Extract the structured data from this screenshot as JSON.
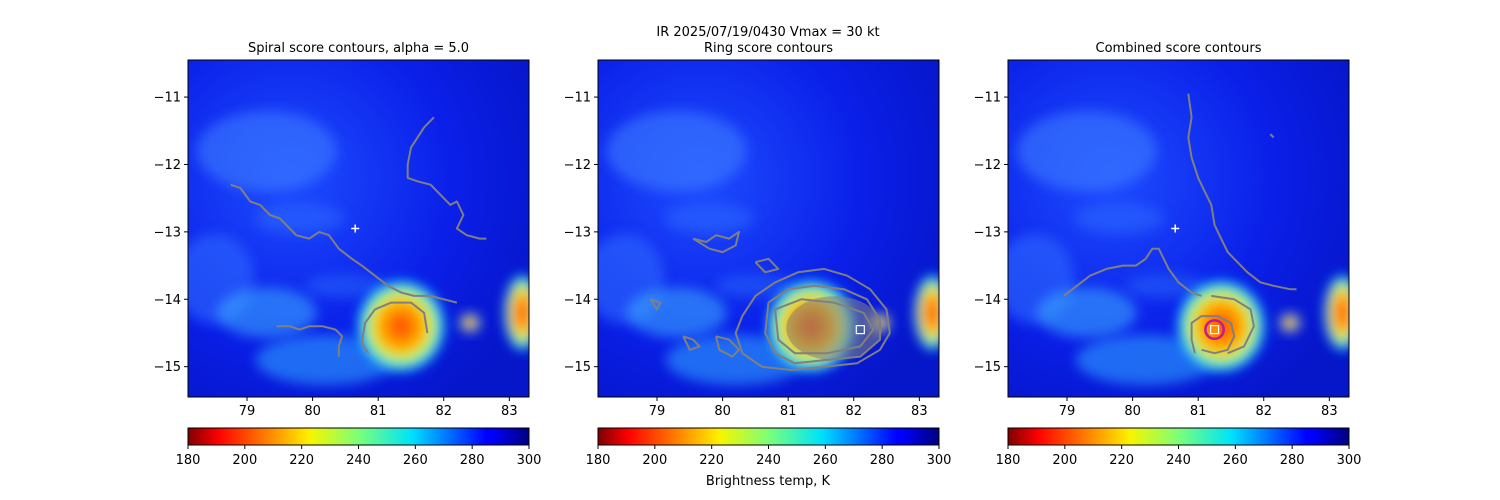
{
  "figure": {
    "suptitle_line1": "IR  2025/07/19/0430    Vmax = 30 kt",
    "colorbar_label": "Brightness temp, K"
  },
  "colors": {
    "contour": "#808080",
    "center_cross": "#ffffff",
    "best_marker_edge": "#ffffff",
    "circle": "#c0199a",
    "combined_marker": "#ff8c00",
    "colormap": "jet_r"
  },
  "chart_data": [
    {
      "type": "heatmap",
      "title": "Spiral score contours, alpha =  5.0",
      "xlim": [
        78.1,
        83.3
      ],
      "ylim": [
        -15.45,
        -10.45
      ],
      "xticks": [
        79,
        80,
        81,
        82,
        83
      ],
      "yticks": [
        -11,
        -12,
        -13,
        -14,
        -15
      ],
      "colorbar": {
        "min": 180,
        "max": 300,
        "ticks": [
          180,
          200,
          220,
          240,
          260,
          280,
          300
        ],
        "cmap": "jet_r"
      },
      "center_marker": {
        "x": 80.65,
        "y": -12.95,
        "symbol": "+"
      },
      "contours": [
        [
          [
            78.75,
            -12.3
          ],
          [
            78.9,
            -12.35
          ],
          [
            79.05,
            -12.55
          ],
          [
            79.2,
            -12.6
          ],
          [
            79.35,
            -12.75
          ],
          [
            79.5,
            -12.8
          ],
          [
            79.6,
            -12.9
          ],
          [
            79.75,
            -13.05
          ],
          [
            79.95,
            -13.1
          ],
          [
            80.1,
            -13.0
          ],
          [
            80.25,
            -13.05
          ],
          [
            80.4,
            -13.25
          ],
          [
            80.6,
            -13.4
          ],
          [
            80.75,
            -13.5
          ],
          [
            80.95,
            -13.65
          ],
          [
            81.15,
            -13.8
          ],
          [
            81.35,
            -13.9
          ],
          [
            81.55,
            -13.95
          ],
          [
            81.8,
            -13.95
          ],
          [
            82.0,
            -14.0
          ],
          [
            82.2,
            -14.05
          ]
        ],
        [
          [
            80.85,
            -14.8
          ],
          [
            80.75,
            -14.65
          ],
          [
            80.8,
            -14.35
          ],
          [
            80.95,
            -14.15
          ],
          [
            81.2,
            -14.05
          ],
          [
            81.5,
            -14.05
          ],
          [
            81.7,
            -14.2
          ],
          [
            81.75,
            -14.5
          ]
        ],
        [
          [
            79.45,
            -14.4
          ],
          [
            79.65,
            -14.4
          ],
          [
            79.8,
            -14.45
          ],
          [
            79.95,
            -14.4
          ],
          [
            80.15,
            -14.4
          ],
          [
            80.35,
            -14.45
          ],
          [
            80.45,
            -14.55
          ],
          [
            80.4,
            -14.7
          ],
          [
            80.4,
            -14.85
          ]
        ],
        [
          [
            81.85,
            -11.3
          ],
          [
            81.7,
            -11.45
          ],
          [
            81.5,
            -11.75
          ],
          [
            81.45,
            -12.0
          ],
          [
            81.45,
            -12.2
          ],
          [
            81.6,
            -12.25
          ],
          [
            81.8,
            -12.3
          ],
          [
            81.95,
            -12.45
          ],
          [
            82.1,
            -12.6
          ],
          [
            82.2,
            -12.55
          ],
          [
            82.3,
            -12.75
          ],
          [
            82.2,
            -12.95
          ],
          [
            82.35,
            -13.05
          ],
          [
            82.55,
            -13.1
          ],
          [
            82.65,
            -13.1
          ]
        ]
      ]
    },
    {
      "type": "heatmap",
      "title": "Ring score contours",
      "xlim": [
        78.1,
        83.3
      ],
      "ylim": [
        -15.45,
        -10.45
      ],
      "xticks": [
        79,
        80,
        81,
        82,
        83
      ],
      "yticks": [
        -11,
        -12,
        -13,
        -14,
        -15
      ],
      "colorbar": {
        "min": 180,
        "max": 300,
        "ticks": [
          180,
          200,
          220,
          240,
          260,
          280,
          300
        ],
        "cmap": "jet_r"
      },
      "best_marker": {
        "x": 82.1,
        "y": -14.45,
        "symbol": "square"
      },
      "contour_blob_center": {
        "x": 81.55,
        "y": -14.4
      },
      "contours": [
        [
          [
            80.3,
            -14.25
          ],
          [
            80.5,
            -13.95
          ],
          [
            80.8,
            -13.75
          ],
          [
            81.15,
            -13.6
          ],
          [
            81.55,
            -13.55
          ],
          [
            81.9,
            -13.65
          ],
          [
            82.25,
            -13.85
          ],
          [
            82.5,
            -14.15
          ],
          [
            82.55,
            -14.5
          ],
          [
            82.4,
            -14.75
          ],
          [
            82.05,
            -14.95
          ],
          [
            81.55,
            -15.0
          ],
          [
            81.05,
            -15.05
          ],
          [
            80.6,
            -15.0
          ],
          [
            80.3,
            -14.8
          ],
          [
            80.2,
            -14.5
          ],
          [
            80.3,
            -14.25
          ]
        ],
        [
          [
            80.7,
            -14.05
          ],
          [
            81.0,
            -13.85
          ],
          [
            81.4,
            -13.8
          ],
          [
            81.85,
            -13.85
          ],
          [
            82.2,
            -14.0
          ],
          [
            82.4,
            -14.3
          ],
          [
            82.4,
            -14.6
          ],
          [
            82.1,
            -14.85
          ],
          [
            81.6,
            -14.9
          ],
          [
            81.1,
            -14.95
          ],
          [
            80.8,
            -14.8
          ],
          [
            80.65,
            -14.5
          ],
          [
            80.7,
            -14.05
          ]
        ],
        [
          [
            80.8,
            -14.15
          ],
          [
            81.2,
            -14.0
          ],
          [
            81.7,
            -14.05
          ],
          [
            82.15,
            -14.2
          ],
          [
            82.3,
            -14.45
          ],
          [
            82.1,
            -14.7
          ],
          [
            81.6,
            -14.8
          ],
          [
            81.1,
            -14.8
          ],
          [
            80.85,
            -14.6
          ],
          [
            80.8,
            -14.15
          ]
        ],
        [
          [
            79.55,
            -13.1
          ],
          [
            79.75,
            -13.15
          ],
          [
            79.9,
            -13.05
          ],
          [
            80.1,
            -13.1
          ],
          [
            80.25,
            -13.0
          ],
          [
            80.2,
            -13.2
          ],
          [
            80.0,
            -13.3
          ],
          [
            79.8,
            -13.25
          ],
          [
            79.55,
            -13.1
          ]
        ],
        [
          [
            79.9,
            -14.55
          ],
          [
            80.1,
            -14.6
          ],
          [
            80.25,
            -14.75
          ],
          [
            80.15,
            -14.85
          ],
          [
            79.95,
            -14.75
          ],
          [
            79.9,
            -14.55
          ]
        ],
        [
          [
            79.4,
            -14.55
          ],
          [
            79.55,
            -14.6
          ],
          [
            79.65,
            -14.7
          ],
          [
            79.5,
            -14.75
          ],
          [
            79.4,
            -14.55
          ]
        ],
        [
          [
            78.9,
            -14.0
          ],
          [
            79.05,
            -14.05
          ],
          [
            79.0,
            -14.15
          ],
          [
            78.9,
            -14.0
          ]
        ],
        [
          [
            80.5,
            -13.45
          ],
          [
            80.7,
            -13.4
          ],
          [
            80.85,
            -13.55
          ],
          [
            80.65,
            -13.6
          ],
          [
            80.5,
            -13.45
          ]
        ]
      ]
    },
    {
      "type": "heatmap",
      "title": "Combined score contours",
      "xlim": [
        78.1,
        83.3
      ],
      "ylim": [
        -15.45,
        -10.45
      ],
      "xticks": [
        79,
        80,
        81,
        82,
        83
      ],
      "yticks": [
        -11,
        -12,
        -13,
        -14,
        -15
      ],
      "colorbar": {
        "min": 180,
        "max": 300,
        "ticks": [
          180,
          200,
          220,
          240,
          260,
          280,
          300
        ],
        "cmap": "jet_r"
      },
      "center_marker": {
        "x": 80.65,
        "y": -12.95,
        "symbol": "+"
      },
      "best_marker": {
        "x": 81.25,
        "y": -14.45,
        "symbol": "square"
      },
      "circle": {
        "x": 81.25,
        "y": -14.45,
        "r": 0.14
      },
      "contours": [
        [
          [
            80.85,
            -10.95
          ],
          [
            80.9,
            -11.3
          ],
          [
            80.85,
            -11.6
          ],
          [
            80.9,
            -11.9
          ],
          [
            81.0,
            -12.2
          ],
          [
            81.1,
            -12.4
          ],
          [
            81.2,
            -12.6
          ],
          [
            81.25,
            -12.9
          ],
          [
            81.35,
            -13.1
          ],
          [
            81.45,
            -13.3
          ],
          [
            81.6,
            -13.45
          ],
          [
            81.75,
            -13.6
          ],
          [
            81.95,
            -13.75
          ],
          [
            82.15,
            -13.8
          ],
          [
            82.4,
            -13.85
          ],
          [
            82.5,
            -13.85
          ]
        ],
        [
          [
            78.95,
            -13.95
          ],
          [
            79.15,
            -13.8
          ],
          [
            79.35,
            -13.65
          ],
          [
            79.6,
            -13.55
          ],
          [
            79.85,
            -13.5
          ],
          [
            80.05,
            -13.5
          ],
          [
            80.2,
            -13.4
          ],
          [
            80.3,
            -13.25
          ],
          [
            80.4,
            -13.25
          ],
          [
            80.45,
            -13.35
          ],
          [
            80.55,
            -13.55
          ],
          [
            80.7,
            -13.75
          ],
          [
            80.9,
            -13.9
          ],
          [
            81.05,
            -13.95
          ]
        ],
        [
          [
            80.95,
            -14.8
          ],
          [
            80.9,
            -14.6
          ],
          [
            80.9,
            -14.35
          ],
          [
            81.05,
            -14.25
          ],
          [
            81.3,
            -14.25
          ],
          [
            81.5,
            -14.35
          ],
          [
            81.55,
            -14.55
          ],
          [
            81.45,
            -14.75
          ],
          [
            81.25,
            -14.8
          ],
          [
            81.05,
            -14.75
          ]
        ],
        [
          [
            81.2,
            -13.95
          ],
          [
            81.55,
            -14.0
          ],
          [
            81.8,
            -14.15
          ],
          [
            81.85,
            -14.4
          ],
          [
            81.7,
            -14.7
          ],
          [
            81.45,
            -14.8
          ]
        ],
        [
          [
            82.1,
            -11.55
          ],
          [
            82.15,
            -11.6
          ]
        ]
      ]
    }
  ]
}
